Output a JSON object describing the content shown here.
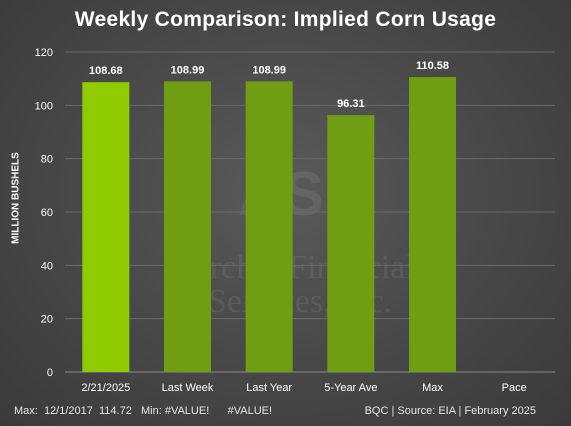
{
  "title": "Weekly Comparison: Implied Corn Usage",
  "chart_data": {
    "type": "bar",
    "title": "Weekly Comparison: Implied Corn Usage",
    "xlabel": "",
    "ylabel": "MILLION BUSHELS",
    "categories": [
      "2/21/2025",
      "Last Week",
      "Last Year",
      "5-Year Ave",
      "Max",
      "Pace"
    ],
    "values": [
      108.68,
      108.99,
      108.99,
      96.31,
      110.58,
      null
    ],
    "data_labels": [
      "108.68",
      "108.99",
      "108.99",
      "96.31",
      "110.58",
      ""
    ],
    "ylim": [
      0,
      120
    ],
    "yticks": [
      0,
      20,
      40,
      60,
      80,
      100,
      120
    ],
    "grid": true,
    "colors": {
      "highlight": "#8fcb00",
      "bar": "#6f9e12",
      "grid": "#6a6a6a",
      "text": "#ffffff"
    }
  },
  "watermark": {
    "logo_text": "ASF",
    "line1": "Archer Financial",
    "line2": "Services, Inc."
  },
  "footer": {
    "left": "Max:  12/1/2017  114.72   Min: #VALUE!      #VALUE!",
    "right": "BQC | Source: EIA | February 2025"
  }
}
